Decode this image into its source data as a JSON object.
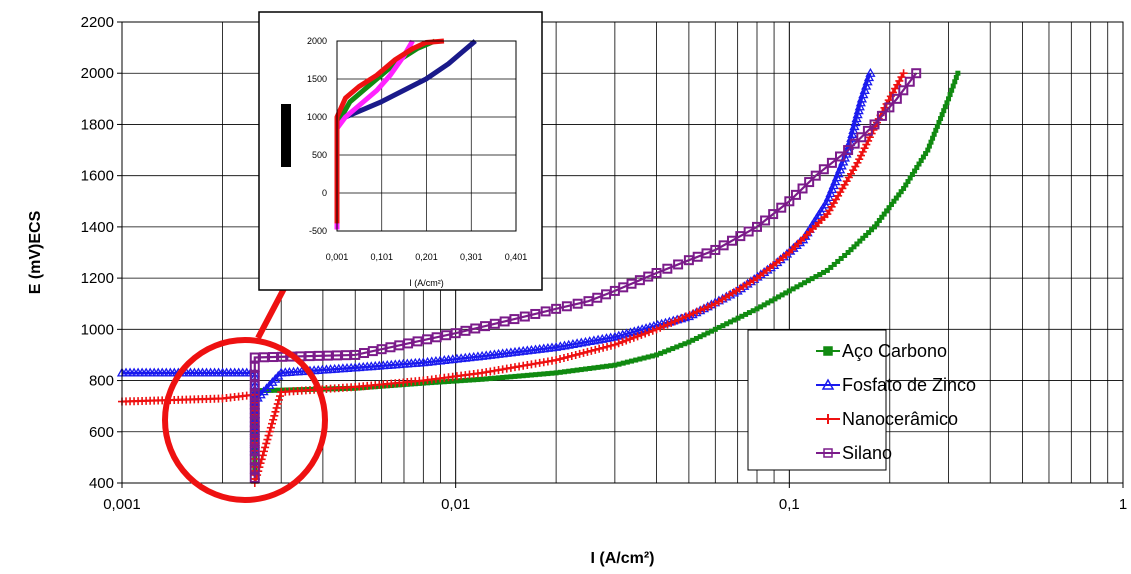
{
  "chart_data": [
    {
      "type": "line",
      "title": "",
      "xlabel": "I (A/cm²)",
      "ylabel": "E (mV)ECS",
      "xscale": "log",
      "xlim": [
        0.001,
        1
      ],
      "ylim": [
        400,
        2200
      ],
      "x_ticks": [
        "0,001",
        "0,01",
        "0,1",
        "1"
      ],
      "y_ticks": [
        "400",
        "600",
        "800",
        "1000",
        "1200",
        "1400",
        "1600",
        "1800",
        "2000",
        "2200"
      ],
      "grid": true,
      "legend_position": "bottom-right",
      "series": [
        {
          "name": "Aço Carbono",
          "color": "#118a11",
          "marker": "square",
          "points": [
            [
              0.0025,
              440
            ],
            [
              0.0025,
              700
            ],
            [
              0.0025,
              760
            ],
            [
              0.005,
              770
            ],
            [
              0.008,
              790
            ],
            [
              0.012,
              805
            ],
            [
              0.02,
              830
            ],
            [
              0.03,
              860
            ],
            [
              0.04,
              900
            ],
            [
              0.05,
              950
            ],
            [
              0.06,
              1000
            ],
            [
              0.08,
              1080
            ],
            [
              0.1,
              1150
            ],
            [
              0.13,
              1230
            ],
            [
              0.15,
              1300
            ],
            [
              0.18,
              1400
            ],
            [
              0.22,
              1550
            ],
            [
              0.26,
              1700
            ],
            [
              0.3,
              1900
            ],
            [
              0.32,
              2000
            ]
          ]
        },
        {
          "name": "Fosfato de Zinco",
          "color": "#1a1aee",
          "marker": "triangle",
          "points": [
            [
              0.001,
              830
            ],
            [
              0.0025,
              830
            ],
            [
              0.0025,
              520
            ],
            [
              0.0025,
              720
            ],
            [
              0.003,
              830
            ],
            [
              0.005,
              850
            ],
            [
              0.008,
              870
            ],
            [
              0.012,
              895
            ],
            [
              0.02,
              930
            ],
            [
              0.03,
              970
            ],
            [
              0.05,
              1050
            ],
            [
              0.07,
              1150
            ],
            [
              0.09,
              1250
            ],
            [
              0.11,
              1350
            ],
            [
              0.13,
              1500
            ],
            [
              0.15,
              1700
            ],
            [
              0.165,
              1900
            ],
            [
              0.175,
              2000
            ]
          ]
        },
        {
          "name": "Nanocerâmico",
          "color": "#ee1111",
          "marker": "plus",
          "points": [
            [
              0.001,
              718
            ],
            [
              0.002,
              730
            ],
            [
              0.0025,
              745
            ],
            [
              0.0025,
              400
            ],
            [
              0.003,
              755
            ],
            [
              0.005,
              775
            ],
            [
              0.008,
              800
            ],
            [
              0.012,
              830
            ],
            [
              0.02,
              880
            ],
            [
              0.03,
              940
            ],
            [
              0.04,
              1000
            ],
            [
              0.06,
              1100
            ],
            [
              0.08,
              1200
            ],
            [
              0.1,
              1300
            ],
            [
              0.13,
              1450
            ],
            [
              0.16,
              1650
            ],
            [
              0.19,
              1850
            ],
            [
              0.22,
              2000
            ]
          ]
        },
        {
          "name": "Silano",
          "color": "#7b1b8a",
          "marker": "square",
          "points": [
            [
              0.0025,
              420
            ],
            [
              0.0025,
              890
            ],
            [
              0.005,
              900
            ],
            [
              0.0072,
              945
            ],
            [
              0.01,
              985
            ],
            [
              0.015,
              1040
            ],
            [
              0.02,
              1080
            ],
            [
              0.025,
              1110
            ],
            [
              0.03,
              1150
            ],
            [
              0.04,
              1220
            ],
            [
              0.05,
              1270
            ],
            [
              0.06,
              1310
            ],
            [
              0.08,
              1400
            ],
            [
              0.1,
              1500
            ],
            [
              0.12,
              1600
            ],
            [
              0.15,
              1700
            ],
            [
              0.18,
              1800
            ],
            [
              0.21,
              1900
            ],
            [
              0.24,
              2000
            ]
          ]
        }
      ]
    },
    {
      "type": "line",
      "title": "",
      "xlabel": "I (A/cm²)",
      "ylabel": "",
      "xlim": [
        0.001,
        0.401
      ],
      "ylim": [
        -500,
        2000
      ],
      "x_ticks": [
        "0,001",
        "0,101",
        "0,201",
        "0,301",
        "0,401"
      ],
      "y_ticks": [
        "-500",
        "0",
        "500",
        "1000",
        "1500",
        "2000"
      ],
      "grid": true,
      "series": [
        {
          "color": "#1a1a8a",
          "points": [
            [
              0.001,
              -300
            ],
            [
              0.001,
              950
            ],
            [
              0.02,
              1000
            ],
            [
              0.06,
              1100
            ],
            [
              0.1,
              1200
            ],
            [
              0.15,
              1350
            ],
            [
              0.2,
              1500
            ],
            [
              0.25,
              1700
            ],
            [
              0.28,
              1850
            ],
            [
              0.3,
              1950
            ],
            [
              0.31,
              2000
            ]
          ]
        },
        {
          "color": "#118a11",
          "points": [
            [
              0.001,
              -350
            ],
            [
              0.001,
              900
            ],
            [
              0.03,
              1200
            ],
            [
              0.06,
              1350
            ],
            [
              0.1,
              1550
            ],
            [
              0.14,
              1750
            ],
            [
              0.18,
              1900
            ],
            [
              0.22,
              2000
            ]
          ]
        },
        {
          "color": "#ff22ff",
          "points": [
            [
              0.001,
              -480
            ],
            [
              0.001,
              850
            ],
            [
              0.02,
              1000
            ],
            [
              0.05,
              1150
            ],
            [
              0.09,
              1350
            ],
            [
              0.12,
              1550
            ],
            [
              0.15,
              1800
            ],
            [
              0.17,
              2000
            ]
          ]
        },
        {
          "color": "#ee1111",
          "points": [
            [
              0.001,
              -400
            ],
            [
              0.001,
              1000
            ],
            [
              0.02,
              1250
            ],
            [
              0.05,
              1400
            ],
            [
              0.09,
              1550
            ],
            [
              0.13,
              1750
            ],
            [
              0.17,
              1900
            ],
            [
              0.2,
              1980
            ],
            [
              0.24,
              2000
            ]
          ]
        }
      ]
    }
  ]
}
